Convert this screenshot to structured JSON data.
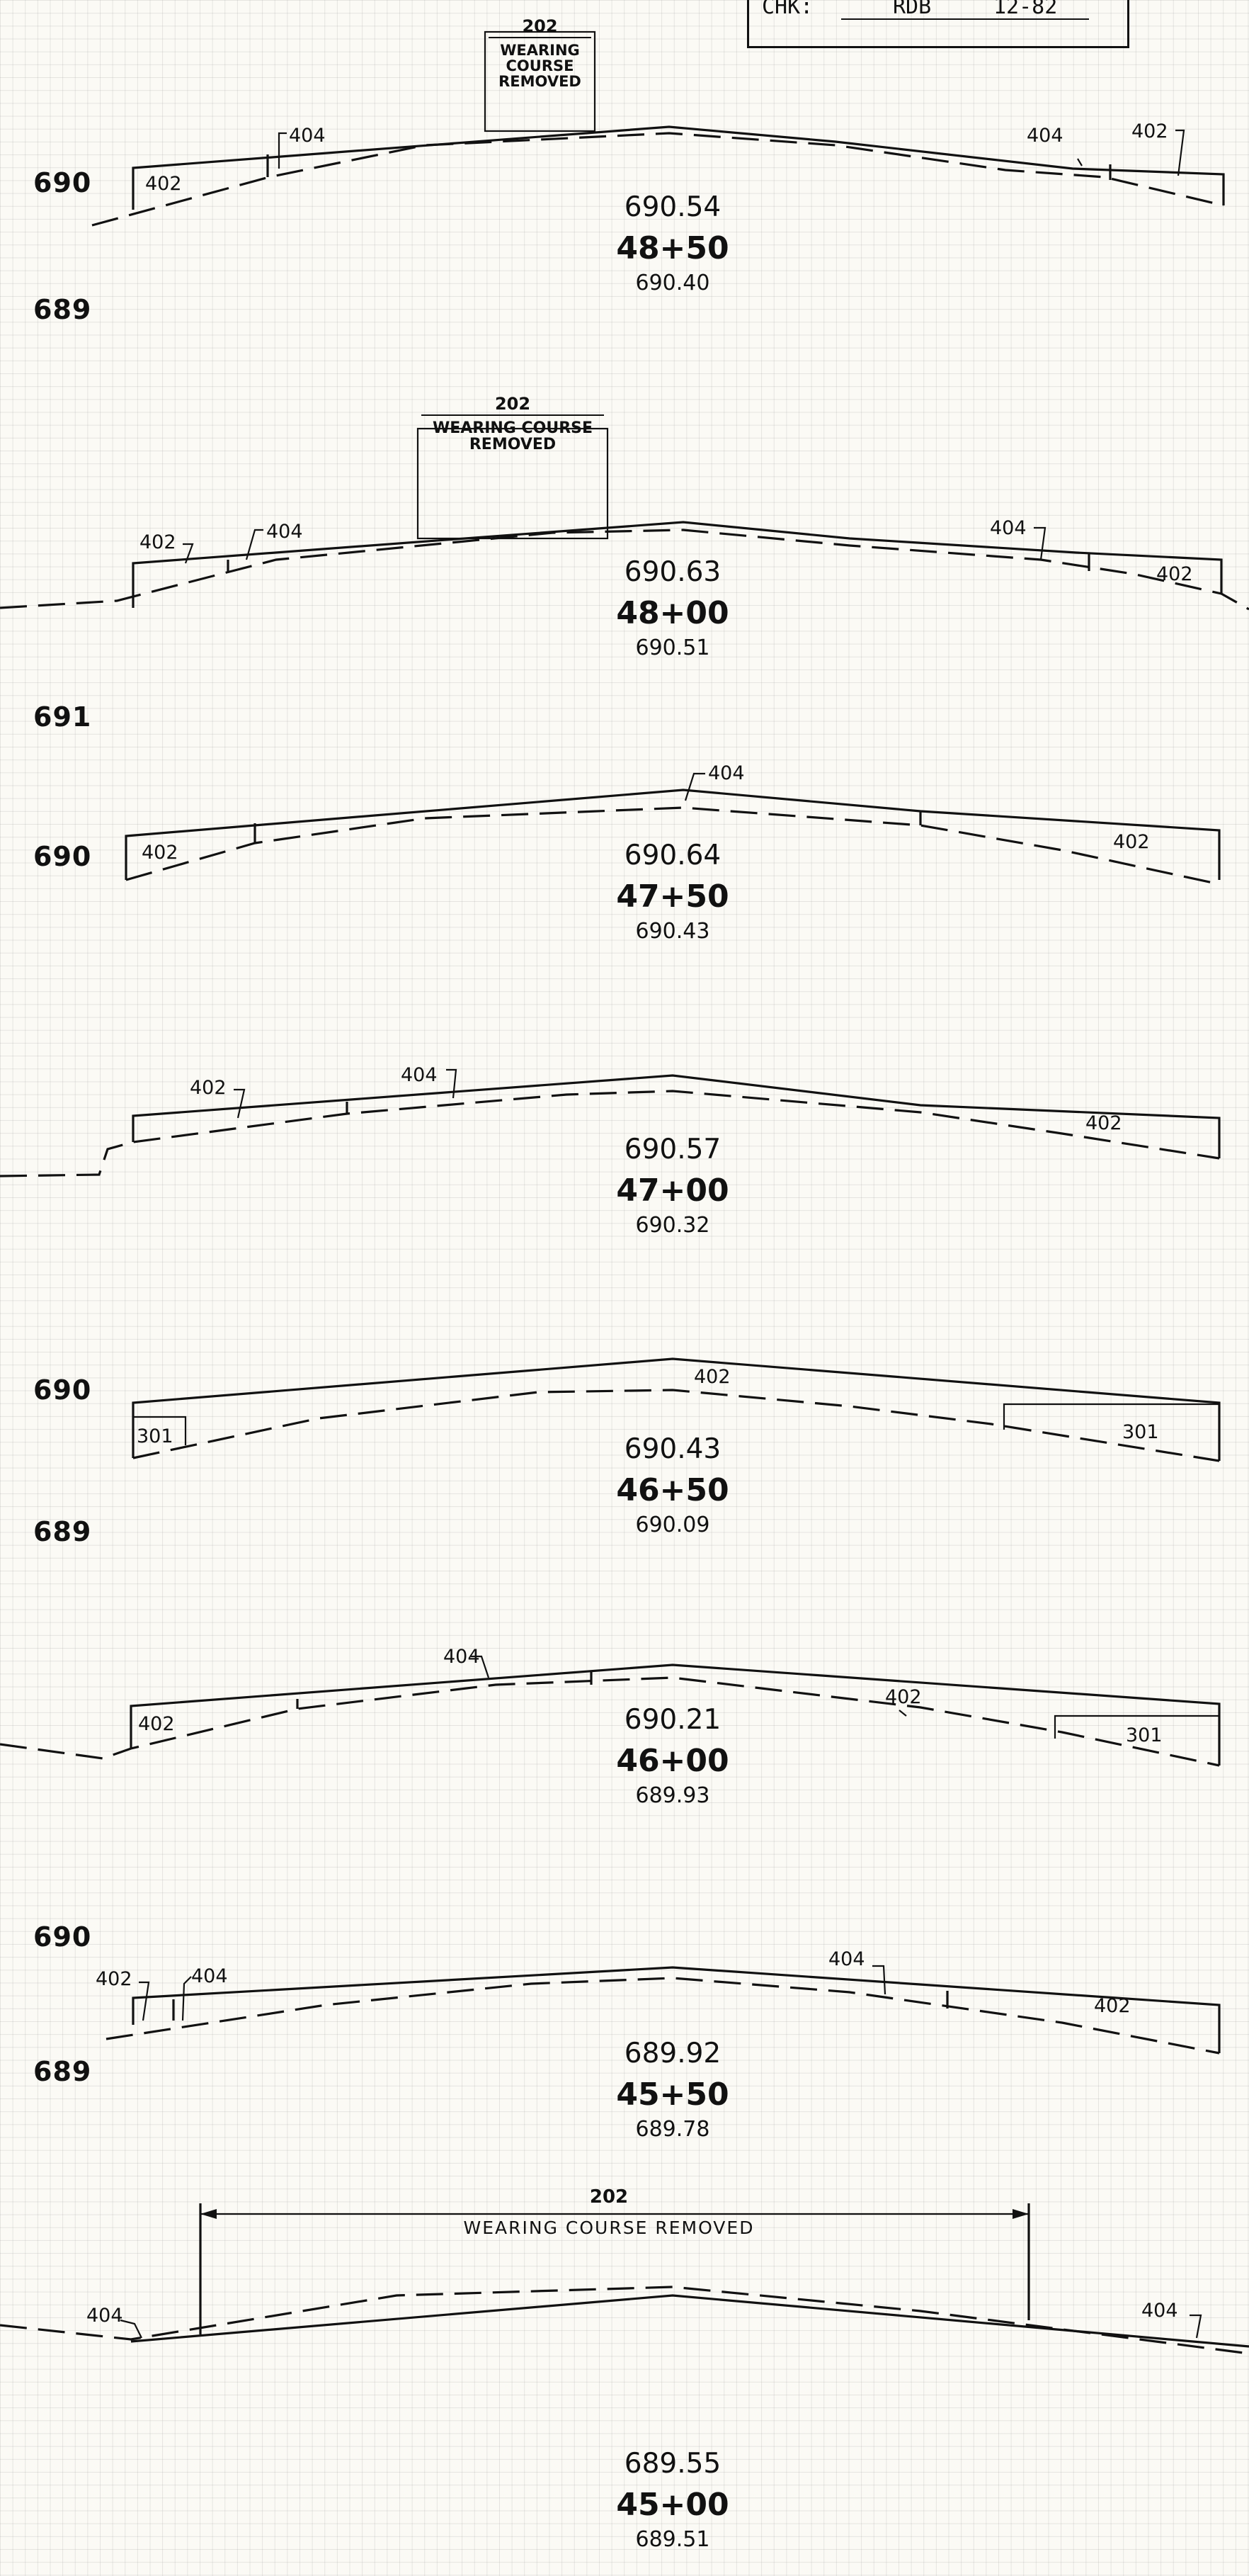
{
  "title_block": {
    "chk_label": "CHK:",
    "checked_by": "RDB",
    "date": "12-82"
  },
  "elevation_labels": [
    "690",
    "689",
    "691",
    "690",
    "690",
    "689",
    "690",
    "689"
  ],
  "sections": [
    {
      "station": "48+50",
      "top_elev": "690.54",
      "bottom_elev": "690.40",
      "note_code": "202",
      "note_text": "WEARING COURSE REMOVED",
      "callouts": [
        "404",
        "402",
        "404",
        "402"
      ]
    },
    {
      "station": "48+00",
      "top_elev": "690.63",
      "bottom_elev": "690.51",
      "note_code": "202",
      "note_text": "WEARING COURSE REMOVED",
      "callouts": [
        "402",
        "404",
        "404",
        "402"
      ]
    },
    {
      "station": "47+50",
      "top_elev": "690.64",
      "bottom_elev": "690.43",
      "callouts": [
        "404",
        "402",
        "402"
      ]
    },
    {
      "station": "47+00",
      "top_elev": "690.57",
      "bottom_elev": "690.32",
      "callouts": [
        "402",
        "404",
        "402"
      ]
    },
    {
      "station": "46+50",
      "top_elev": "690.43",
      "bottom_elev": "690.09",
      "callouts": [
        "402",
        "301",
        "301"
      ]
    },
    {
      "station": "46+00",
      "top_elev": "690.21",
      "bottom_elev": "689.93",
      "callouts": [
        "404",
        "402",
        "402",
        "301"
      ]
    },
    {
      "station": "45+50",
      "top_elev": "689.92",
      "bottom_elev": "689.78",
      "callouts": [
        "402",
        "404",
        "404",
        "402"
      ]
    },
    {
      "station": "45+00",
      "top_elev": "689.55",
      "bottom_elev": "689.51",
      "note_code": "202",
      "note_text": "WEARING COURSE REMOVED",
      "callouts": [
        "404",
        "404"
      ]
    }
  ]
}
